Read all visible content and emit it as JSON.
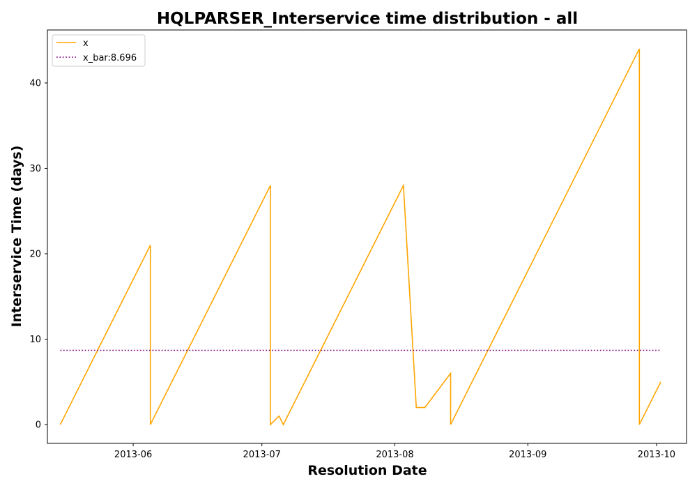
{
  "chart_data": {
    "type": "line",
    "title": "HQLPARSER_Interservice time distribution - all",
    "xlabel": "Resolution Date",
    "ylabel": "Interservice Time (days)",
    "x_range": [
      "2013-05-12",
      "2013-10-08"
    ],
    "ylim": [
      -2.2,
      46.2
    ],
    "x_ticks": [
      {
        "date": "2013-06-01",
        "label": "2013-06"
      },
      {
        "date": "2013-07-01",
        "label": "2013-07"
      },
      {
        "date": "2013-08-01",
        "label": "2013-08"
      },
      {
        "date": "2013-09-01",
        "label": "2013-09"
      },
      {
        "date": "2013-10-01",
        "label": "2013-10"
      }
    ],
    "y_ticks": [
      0,
      10,
      20,
      30,
      40
    ],
    "grid": false,
    "legend_position": "top-left",
    "series": [
      {
        "name": "x",
        "color": "#ffa500",
        "style": "solid",
        "points": [
          {
            "x": "2013-05-15",
            "y": 0
          },
          {
            "x": "2013-06-05",
            "y": 21
          },
          {
            "x": "2013-06-05",
            "y": 0
          },
          {
            "x": "2013-07-03",
            "y": 28
          },
          {
            "x": "2013-07-03",
            "y": 0
          },
          {
            "x": "2013-07-05",
            "y": 1
          },
          {
            "x": "2013-07-06",
            "y": 0
          },
          {
            "x": "2013-08-03",
            "y": 28
          },
          {
            "x": "2013-08-06",
            "y": 2
          },
          {
            "x": "2013-08-08",
            "y": 2
          },
          {
            "x": "2013-08-14",
            "y": 6
          },
          {
            "x": "2013-08-14",
            "y": 0
          },
          {
            "x": "2013-09-27",
            "y": 44
          },
          {
            "x": "2013-09-27",
            "y": 0
          },
          {
            "x": "2013-10-02",
            "y": 5
          }
        ]
      },
      {
        "name": "x_bar:8.696",
        "color": "#800080",
        "style": "dotted",
        "points": [
          {
            "x": "2013-05-15",
            "y": 8.696
          },
          {
            "x": "2013-10-02",
            "y": 8.696
          }
        ]
      }
    ]
  }
}
